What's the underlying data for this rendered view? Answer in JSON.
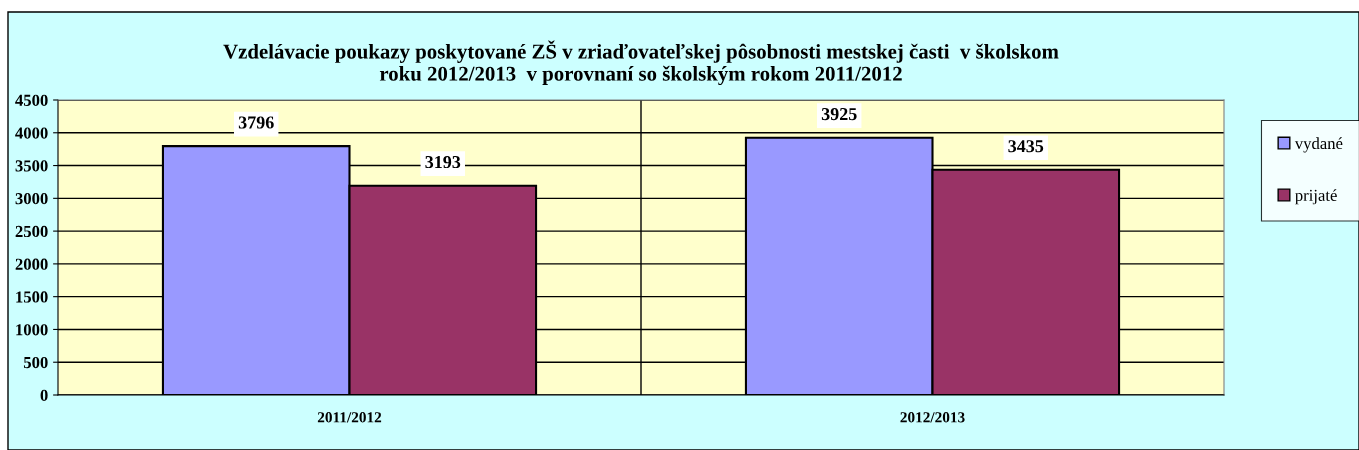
{
  "chart_data": {
    "type": "bar",
    "title": "Vzdelávacie poukazy poskytované ZŠ v zriaďovateľskej pôsobnosti mestskej časti  v školskom\nroku 2012/2013  v porovnaní so školským rokom 2011/2012",
    "categories": [
      "2011/2012",
      "2012/2013"
    ],
    "series": [
      {
        "name": "vydané",
        "color": "#9999ff",
        "values": [
          3796,
          3925
        ]
      },
      {
        "name": "prijaté",
        "color": "#993366",
        "values": [
          3193,
          3435
        ]
      }
    ],
    "ylim": [
      0,
      4500
    ],
    "yticks": [
      0,
      500,
      1000,
      1500,
      2000,
      2500,
      3000,
      3500,
      4000,
      4500
    ],
    "grid": true,
    "legend": "right",
    "data_labels": true
  }
}
